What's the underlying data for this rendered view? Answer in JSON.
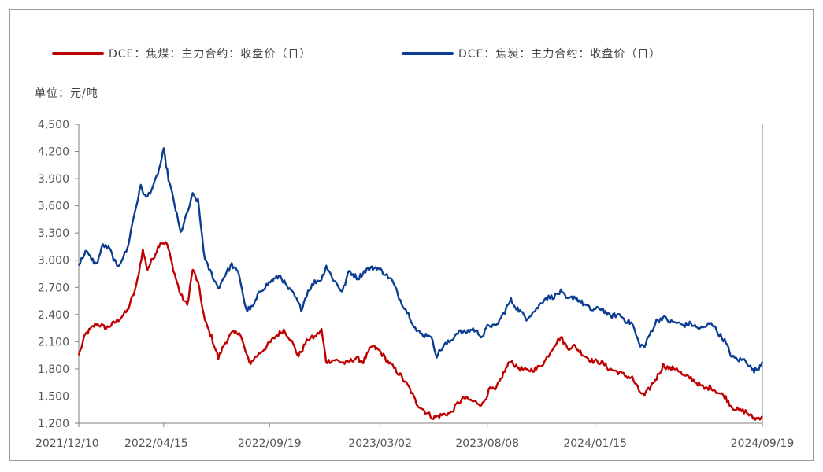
{
  "colors": {
    "coke": "#c00000",
    "coal": "#0b3d91",
    "axis": "#7f7f7f",
    "text": "#555555"
  },
  "unit_label": "单位：元/吨",
  "chart_data": {
    "type": "line",
    "ylim": [
      1200,
      4500
    ],
    "yticks": [
      "4,500",
      "4,200",
      "3,900",
      "3,600",
      "3,300",
      "3,000",
      "2,700",
      "2,400",
      "2,100",
      "1,800",
      "1,500",
      "1,200"
    ],
    "ytick_values": [
      4500,
      4200,
      3900,
      3600,
      3300,
      3000,
      2700,
      2400,
      2100,
      1800,
      1500,
      1200
    ],
    "x_start": "2021-12-10",
    "x_end": "2024-09-19",
    "xticks": [
      "2021/12/10",
      "2022/04/15",
      "2022/09/19",
      "2023/03/02",
      "2023/08/08",
      "2024/01/15",
      "2024/09/19"
    ],
    "xtick_dates": [
      "2021-12-10",
      "2022-04-15",
      "2022-09-19",
      "2023-03-02",
      "2023-08-08",
      "2024-01-15",
      "2024-09-19"
    ],
    "grid": false,
    "legend_position": "top",
    "series": [
      {
        "name": "DCE：焦煤：主力合约：收盘价（日）",
        "color": "#c00000",
        "points": [
          [
            "2021-12-10",
            1950
          ],
          [
            "2021-12-20",
            2180
          ],
          [
            "2022-01-05",
            2300
          ],
          [
            "2022-01-20",
            2250
          ],
          [
            "2022-02-05",
            2330
          ],
          [
            "2022-02-20",
            2440
          ],
          [
            "2022-03-05",
            2700
          ],
          [
            "2022-03-15",
            3110
          ],
          [
            "2022-03-22",
            2900
          ],
          [
            "2022-04-01",
            3050
          ],
          [
            "2022-04-10",
            3200
          ],
          [
            "2022-04-20",
            3180
          ],
          [
            "2022-05-01",
            2850
          ],
          [
            "2022-05-10",
            2620
          ],
          [
            "2022-05-20",
            2500
          ],
          [
            "2022-05-28",
            2900
          ],
          [
            "2022-06-05",
            2750
          ],
          [
            "2022-06-15",
            2330
          ],
          [
            "2022-06-25",
            2150
          ],
          [
            "2022-07-05",
            1920
          ],
          [
            "2022-07-15",
            2090
          ],
          [
            "2022-07-25",
            2190
          ],
          [
            "2022-08-05",
            2210
          ],
          [
            "2022-08-12",
            2050
          ],
          [
            "2022-08-20",
            1860
          ],
          [
            "2022-09-01",
            1950
          ],
          [
            "2022-09-15",
            2050
          ],
          [
            "2022-09-28",
            2160
          ],
          [
            "2022-10-10",
            2230
          ],
          [
            "2022-10-20",
            2130
          ],
          [
            "2022-11-01",
            1940
          ],
          [
            "2022-11-15",
            2130
          ],
          [
            "2022-11-25",
            2150
          ],
          [
            "2022-12-05",
            2230
          ],
          [
            "2022-12-12",
            1880
          ],
          [
            "2022-12-25",
            1900
          ],
          [
            "2023-01-10",
            1860
          ],
          [
            "2023-01-25",
            1920
          ],
          [
            "2023-02-05",
            1880
          ],
          [
            "2023-02-18",
            2050
          ],
          [
            "2023-03-01",
            2000
          ],
          [
            "2023-03-15",
            1870
          ],
          [
            "2023-04-01",
            1730
          ],
          [
            "2023-04-15",
            1580
          ],
          [
            "2023-04-25",
            1420
          ],
          [
            "2023-05-08",
            1330
          ],
          [
            "2023-05-20",
            1260
          ],
          [
            "2023-06-05",
            1300
          ],
          [
            "2023-06-15",
            1310
          ],
          [
            "2023-06-25",
            1420
          ],
          [
            "2023-07-05",
            1480
          ],
          [
            "2023-07-18",
            1440
          ],
          [
            "2023-08-01",
            1410
          ],
          [
            "2023-08-12",
            1580
          ],
          [
            "2023-08-20",
            1560
          ],
          [
            "2023-09-01",
            1750
          ],
          [
            "2023-09-12",
            1900
          ],
          [
            "2023-09-20",
            1820
          ],
          [
            "2023-10-05",
            1780
          ],
          [
            "2023-10-20",
            1800
          ],
          [
            "2023-11-01",
            1880
          ],
          [
            "2023-11-15",
            2060
          ],
          [
            "2023-11-25",
            2150
          ],
          [
            "2023-12-05",
            2030
          ],
          [
            "2023-12-15",
            2050
          ],
          [
            "2023-12-28",
            1960
          ],
          [
            "2024-01-10",
            1890
          ],
          [
            "2024-01-25",
            1870
          ],
          [
            "2024-02-05",
            1800
          ],
          [
            "2024-02-20",
            1760
          ],
          [
            "2024-03-01",
            1720
          ],
          [
            "2024-03-10",
            1700
          ],
          [
            "2024-03-20",
            1560
          ],
          [
            "2024-03-28",
            1500
          ],
          [
            "2024-04-05",
            1590
          ],
          [
            "2024-04-15",
            1700
          ],
          [
            "2024-04-25",
            1840
          ],
          [
            "2024-05-05",
            1800
          ],
          [
            "2024-05-15",
            1810
          ],
          [
            "2024-05-25",
            1720
          ],
          [
            "2024-06-05",
            1700
          ],
          [
            "2024-06-15",
            1640
          ],
          [
            "2024-06-25",
            1580
          ],
          [
            "2024-07-05",
            1600
          ],
          [
            "2024-07-15",
            1540
          ],
          [
            "2024-07-25",
            1500
          ],
          [
            "2024-08-05",
            1380
          ],
          [
            "2024-08-15",
            1340
          ],
          [
            "2024-08-25",
            1330
          ],
          [
            "2024-09-05",
            1260
          ],
          [
            "2024-09-12",
            1250
          ],
          [
            "2024-09-19",
            1280
          ]
        ]
      },
      {
        "name": "DCE：焦炭：主力合约：收盘价（日）",
        "color": "#0b3d91",
        "points": [
          [
            "2021-12-10",
            2940
          ],
          [
            "2021-12-20",
            3100
          ],
          [
            "2022-01-05",
            2950
          ],
          [
            "2022-01-15",
            3170
          ],
          [
            "2022-01-25",
            3120
          ],
          [
            "2022-02-05",
            2920
          ],
          [
            "2022-02-20",
            3120
          ],
          [
            "2022-03-01",
            3460
          ],
          [
            "2022-03-12",
            3820
          ],
          [
            "2022-03-20",
            3680
          ],
          [
            "2022-04-01",
            3840
          ],
          [
            "2022-04-08",
            4000
          ],
          [
            "2022-04-15",
            4210
          ],
          [
            "2022-04-22",
            3900
          ],
          [
            "2022-05-01",
            3620
          ],
          [
            "2022-05-10",
            3300
          ],
          [
            "2022-05-20",
            3520
          ],
          [
            "2022-05-28",
            3720
          ],
          [
            "2022-06-05",
            3650
          ],
          [
            "2022-06-15",
            3000
          ],
          [
            "2022-06-25",
            2850
          ],
          [
            "2022-07-05",
            2690
          ],
          [
            "2022-07-15",
            2840
          ],
          [
            "2022-07-25",
            2950
          ],
          [
            "2022-08-05",
            2840
          ],
          [
            "2022-08-15",
            2450
          ],
          [
            "2022-08-25",
            2480
          ],
          [
            "2022-09-05",
            2660
          ],
          [
            "2022-09-20",
            2760
          ],
          [
            "2022-10-05",
            2830
          ],
          [
            "2022-10-15",
            2700
          ],
          [
            "2022-10-25",
            2620
          ],
          [
            "2022-11-05",
            2460
          ],
          [
            "2022-11-15",
            2660
          ],
          [
            "2022-11-25",
            2760
          ],
          [
            "2022-12-05",
            2790
          ],
          [
            "2022-12-12",
            2940
          ],
          [
            "2022-12-20",
            2820
          ],
          [
            "2023-01-05",
            2650
          ],
          [
            "2023-01-15",
            2880
          ],
          [
            "2023-01-28",
            2800
          ],
          [
            "2023-02-10",
            2900
          ],
          [
            "2023-02-25",
            2920
          ],
          [
            "2023-03-08",
            2860
          ],
          [
            "2023-03-20",
            2770
          ],
          [
            "2023-04-01",
            2560
          ],
          [
            "2023-04-15",
            2380
          ],
          [
            "2023-04-25",
            2220
          ],
          [
            "2023-05-05",
            2170
          ],
          [
            "2023-05-15",
            2180
          ],
          [
            "2023-05-25",
            1950
          ],
          [
            "2023-06-05",
            2060
          ],
          [
            "2023-06-15",
            2110
          ],
          [
            "2023-06-25",
            2210
          ],
          [
            "2023-07-05",
            2200
          ],
          [
            "2023-07-18",
            2240
          ],
          [
            "2023-08-01",
            2160
          ],
          [
            "2023-08-10",
            2290
          ],
          [
            "2023-08-20",
            2260
          ],
          [
            "2023-09-01",
            2410
          ],
          [
            "2023-09-12",
            2560
          ],
          [
            "2023-09-20",
            2480
          ],
          [
            "2023-10-05",
            2360
          ],
          [
            "2023-10-20",
            2460
          ],
          [
            "2023-11-01",
            2580
          ],
          [
            "2023-11-15",
            2600
          ],
          [
            "2023-11-25",
            2650
          ],
          [
            "2023-12-05",
            2560
          ],
          [
            "2023-12-15",
            2600
          ],
          [
            "2023-12-28",
            2520
          ],
          [
            "2024-01-10",
            2450
          ],
          [
            "2024-01-25",
            2470
          ],
          [
            "2024-02-05",
            2380
          ],
          [
            "2024-02-20",
            2400
          ],
          [
            "2024-03-01",
            2330
          ],
          [
            "2024-03-10",
            2300
          ],
          [
            "2024-03-20",
            2080
          ],
          [
            "2024-03-28",
            2040
          ],
          [
            "2024-04-05",
            2180
          ],
          [
            "2024-04-15",
            2330
          ],
          [
            "2024-04-25",
            2370
          ],
          [
            "2024-05-05",
            2320
          ],
          [
            "2024-05-15",
            2310
          ],
          [
            "2024-05-25",
            2280
          ],
          [
            "2024-06-05",
            2300
          ],
          [
            "2024-06-15",
            2250
          ],
          [
            "2024-06-25",
            2250
          ],
          [
            "2024-07-05",
            2320
          ],
          [
            "2024-07-15",
            2200
          ],
          [
            "2024-07-25",
            2110
          ],
          [
            "2024-08-05",
            1930
          ],
          [
            "2024-08-15",
            1900
          ],
          [
            "2024-08-25",
            1900
          ],
          [
            "2024-09-05",
            1780
          ],
          [
            "2024-09-12",
            1800
          ],
          [
            "2024-09-19",
            1880
          ]
        ]
      }
    ]
  }
}
